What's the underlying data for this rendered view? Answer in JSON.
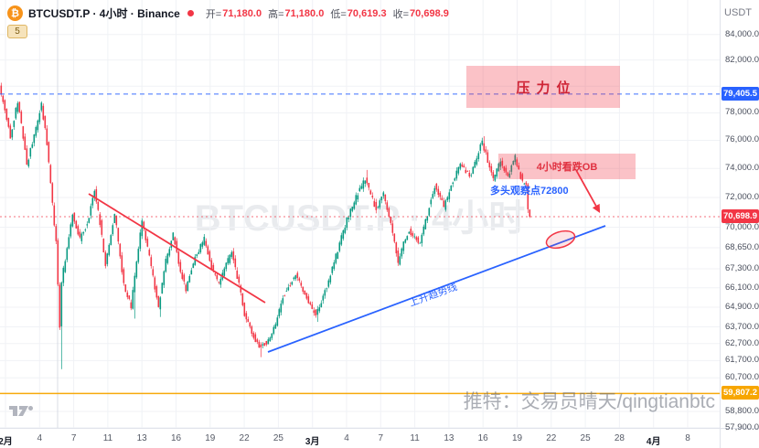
{
  "colors": {
    "up": "#089981",
    "down": "#f23645",
    "blue": "#2962ff",
    "orange": "#f7a600",
    "grid": "#f0f2f6",
    "axis_text": "#4a4f5d",
    "brand": "#f7931a"
  },
  "header": {
    "symbol_icon": "₿",
    "title": "BTCUSDT.P · 4小时 · Binance",
    "ohlc": [
      {
        "label": "开=",
        "value": "71,180.0"
      },
      {
        "label": "高=",
        "value": "71,180.0"
      },
      {
        "label": "低=",
        "value": "70,619.3"
      },
      {
        "label": "收=",
        "value": "70,698.9"
      }
    ],
    "ohlc_color": "#f23645",
    "currency_button": "USDT",
    "count_badge": "5"
  },
  "watermarks": {
    "symbol": "BTCUSDT.P · 4小时",
    "credit": "推特：交易员晴天/qingtianbtc"
  },
  "annotations": {
    "pressure_box_label": "压力位",
    "ob_box_label": "4小时看跌OB",
    "observation_label": "多头观察点72800",
    "trendline_label": "上升趋势线"
  },
  "price_labels": {
    "alert_line": {
      "value": 79405.5,
      "text": "79,405.5",
      "color": "#2962ff"
    },
    "last_price": {
      "value": 70698.9,
      "text": "70,698.9",
      "color": "#f23645"
    },
    "support_line": {
      "value": 59807.2,
      "text": "59,807.2",
      "color": "#f7a600"
    }
  },
  "axes": {
    "price_ticks": [
      84000,
      82000,
      80000,
      78000,
      76000,
      74000,
      72000,
      70000,
      68650,
      67300,
      66100,
      64900,
      63700,
      62700,
      61700,
      60700,
      59800,
      58800,
      57900
    ],
    "time_labels": [
      "2月",
      "4",
      "7",
      "11",
      "13",
      "16",
      "19",
      "22",
      "25",
      "3月",
      "4",
      "7",
      "11",
      "13",
      "16",
      "19",
      "22",
      "25",
      "28",
      "4月",
      "8"
    ]
  },
  "chart_data": {
    "type": "candlestick",
    "symbol": "BTCUSDT.P",
    "interval": "4小时",
    "exchange": "Binance",
    "scale": "log",
    "ylim": [
      57900,
      84600
    ],
    "last": {
      "open": 71180.0,
      "high": 71180.0,
      "low": 70619.3,
      "close": 70698.9
    },
    "candle_count": 290,
    "waypoints": [
      [
        0,
        80000
      ],
      [
        3,
        78200
      ],
      [
        6,
        76300
      ],
      [
        10,
        78900
      ],
      [
        13,
        76200
      ],
      [
        15,
        74300
      ],
      [
        18,
        75800
      ],
      [
        20,
        76800
      ],
      [
        23,
        78600
      ],
      [
        26,
        75800
      ],
      [
        29,
        71500
      ],
      [
        31,
        69000
      ],
      [
        33,
        63800
      ],
      [
        34,
        66500
      ],
      [
        36,
        67900
      ],
      [
        40,
        70900
      ],
      [
        44,
        69200
      ],
      [
        48,
        70200
      ],
      [
        52,
        72500
      ],
      [
        55,
        70300
      ],
      [
        58,
        67500
      ],
      [
        63,
        70900
      ],
      [
        68,
        66300
      ],
      [
        72,
        64900
      ],
      [
        78,
        70400
      ],
      [
        82,
        68000
      ],
      [
        87,
        64900
      ],
      [
        91,
        67800
      ],
      [
        95,
        69500
      ],
      [
        99,
        67200
      ],
      [
        102,
        66000
      ],
      [
        107,
        68000
      ],
      [
        112,
        69200
      ],
      [
        116,
        67400
      ],
      [
        120,
        66400
      ],
      [
        124,
        67600
      ],
      [
        127,
        68300
      ],
      [
        131,
        66300
      ],
      [
        134,
        64500
      ],
      [
        138,
        63300
      ],
      [
        142,
        62500
      ],
      [
        148,
        62950
      ],
      [
        152,
        64200
      ],
      [
        155,
        65500
      ],
      [
        159,
        66300
      ],
      [
        162,
        66900
      ],
      [
        165,
        66200
      ],
      [
        168,
        65500
      ],
      [
        171,
        64800
      ],
      [
        173,
        64400
      ],
      [
        177,
        65600
      ],
      [
        180,
        66500
      ],
      [
        185,
        68500
      ],
      [
        190,
        70500
      ],
      [
        195,
        72000
      ],
      [
        200,
        73300
      ],
      [
        203,
        72200
      ],
      [
        206,
        71200
      ],
      [
        210,
        72300
      ],
      [
        214,
        70200
      ],
      [
        218,
        67700
      ],
      [
        221,
        68900
      ],
      [
        224,
        69800
      ],
      [
        227,
        69300
      ],
      [
        230,
        68900
      ],
      [
        234,
        70900
      ],
      [
        238,
        72800
      ],
      [
        241,
        72000
      ],
      [
        243,
        71300
      ],
      [
        247,
        72800
      ],
      [
        252,
        74300
      ],
      [
        255,
        73800
      ],
      [
        258,
        73500
      ],
      [
        261,
        74800
      ],
      [
        264,
        75900
      ],
      [
        267,
        74500
      ],
      [
        270,
        73200
      ],
      [
        272,
        73900
      ],
      [
        274,
        74600
      ],
      [
        276,
        73900
      ],
      [
        278,
        73400
      ],
      [
        280,
        74100
      ],
      [
        282,
        74800
      ],
      [
        284,
        73900
      ],
      [
        286,
        73000
      ],
      [
        288,
        72900
      ],
      [
        289,
        70700
      ],
      [
        290,
        70700
      ]
    ],
    "wick_overrides": [
      {
        "i": 33,
        "low": 61200
      },
      {
        "i": 73,
        "low": 64200
      },
      {
        "i": 87,
        "low": 64300
      },
      {
        "i": 142,
        "low": 61900
      },
      {
        "i": 173,
        "low": 64000
      },
      {
        "i": 200,
        "high": 73900
      },
      {
        "i": 264,
        "high": 76300
      }
    ],
    "candle_overrides": [
      {
        "i": 288,
        "open": 72900,
        "high": 73000,
        "low": 70950,
        "close": 71200
      },
      {
        "i": 289,
        "open": 71180,
        "high": 71180,
        "low": 70619.3,
        "close": 70698.9
      }
    ],
    "levels": {
      "resistance_zone_price_range": [
        78500,
        81700
      ],
      "bearish_ob_price_range": [
        73150,
        74950
      ],
      "bull_watch_price": 72800,
      "alert_line_price": 79405.5,
      "support_line_price": 59807.2,
      "ascending_trendline_prices": [
        62300,
        70050
      ],
      "descending_trendline_prices": [
        72400,
        65100
      ]
    }
  }
}
